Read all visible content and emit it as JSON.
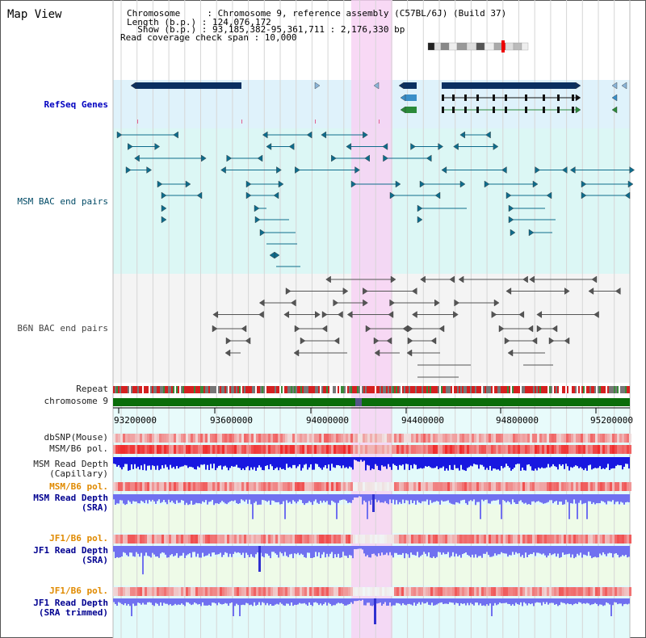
{
  "header": {
    "view_title": "Map View",
    "info_lines": [
      "Chromosome     : Chromosome 9, reference assembly (C57BL/6J) (Build 37)",
      "Length (b.p.) : 124,076,172",
      "  Show (b.p.) : 93,185,382-95,361,711 : 2,176,330 bp",
      "Read coverage check span : 10,000"
    ]
  },
  "tracks": {
    "refseq": "RefSeq Genes",
    "msm_bac": "MSM BAC end pairs",
    "b6n_bac": "B6N BAC end pairs",
    "repeat": "Repeat",
    "chromosome": "chromosome 9",
    "dbsnp": "dbSNP(Mouse)",
    "msm_b6_pol": "MSM/B6 pol.",
    "msm_rd_cap_1": "MSM Read Depth",
    "msm_rd_cap_2": "(Capillary)",
    "msm_b6_pol_sra": "MSM/B6 pol.",
    "msm_rd_sra_1": "MSM Read Depth",
    "msm_rd_sra_2": "(SRA)",
    "jf1_b6_pol": "JF1/B6 pol.",
    "jf1_rd_sra_1": "JF1 Read Depth",
    "jf1_rd_sra_2": "(SRA)",
    "jf1_b6_pol_trim": "JF1/B6 pol.",
    "jf1_rd_trim_1": "JF1 Read Depth",
    "jf1_rd_trim_2": "(SRA trimmed)"
  },
  "axis_ticks": [
    "93200000",
    "93600000",
    "94000000",
    "94400000",
    "94800000",
    "95200000"
  ],
  "colors": {
    "refseq_bg": "#dff2fb",
    "msm_bg": "#dcf7f5",
    "b6n_bg": "#f4f4f4",
    "highlight": "#f7d2f3",
    "gene_dark": "#0b3060",
    "gene_blue": "#3a8fc8",
    "gene_green": "#2a8a3a",
    "msm_bac": "#0e6c8c",
    "b6n_bac": "#555555",
    "chrom_green": "#0a6d0a",
    "depth_dark": "#1818e0",
    "depth_light": "#7070f0"
  }
}
